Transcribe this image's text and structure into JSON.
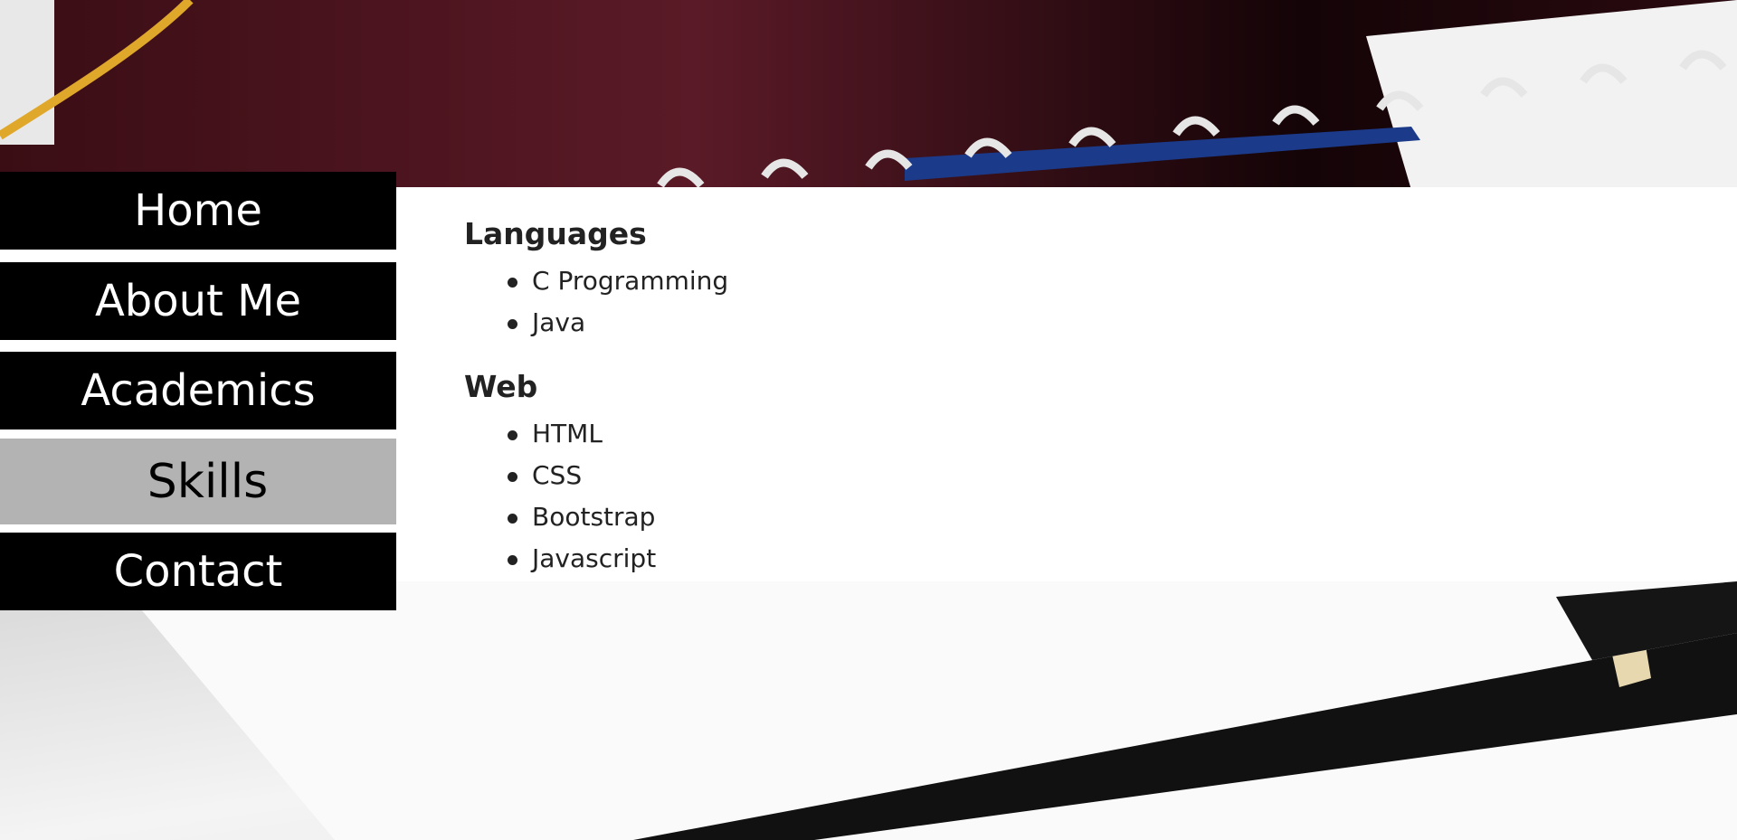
{
  "nav": [
    "Home",
    "About Me",
    "Academics",
    "Skills",
    "Contact"
  ],
  "sections": [
    {
      "heading": "Languages",
      "items": [
        "C Programming",
        "Java"
      ]
    },
    {
      "heading": "Web",
      "items": [
        "HTML",
        "CSS",
        "Bootstrap",
        "Javascript"
      ]
    }
  ]
}
